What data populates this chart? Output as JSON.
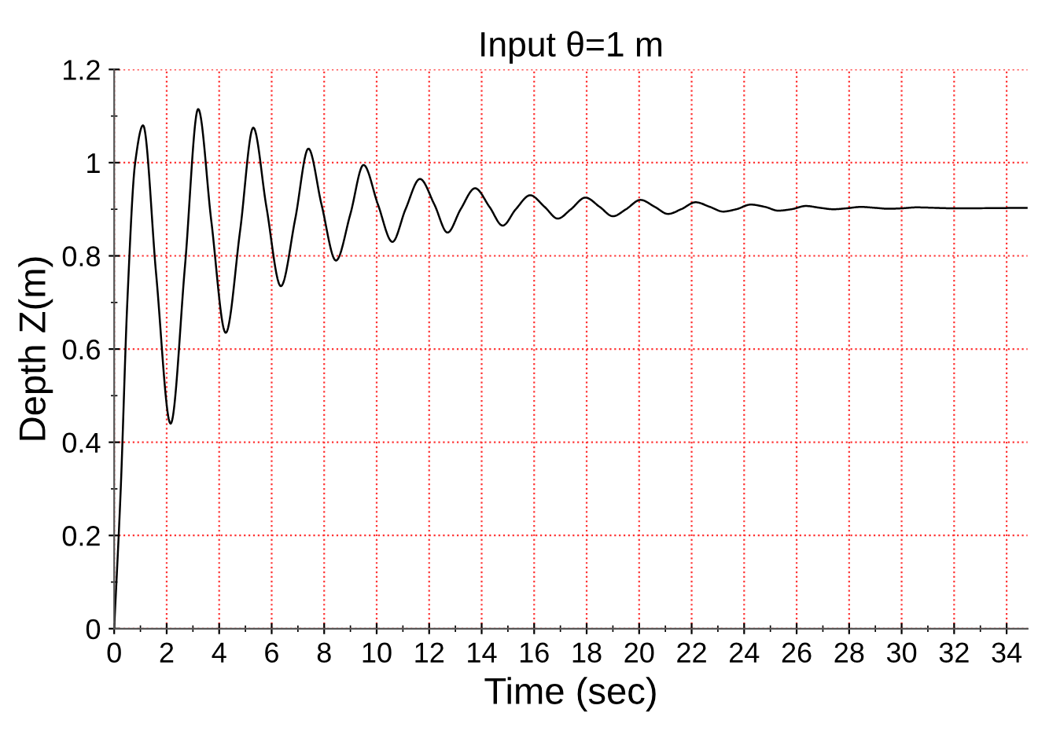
{
  "chart_data": {
    "type": "line",
    "title": "Input θ=1 m",
    "xlabel": "Time (sec)",
    "ylabel": "Depth Z(m)",
    "x": [
      0,
      0.25,
      0.5,
      0.8,
      1.1,
      1.6,
      2.15,
      2.7,
      3.2,
      3.7,
      4.25,
      4.8,
      5.3,
      5.8,
      6.35,
      6.9,
      7.4,
      7.9,
      8.45,
      9.0,
      9.5,
      10.05,
      10.6,
      11.1,
      11.65,
      12.2,
      12.7,
      13.2,
      13.75,
      14.3,
      14.8,
      15.3,
      15.85,
      16.4,
      16.9,
      17.4,
      17.95,
      18.5,
      19.0,
      19.5,
      20.05,
      20.6,
      21.1,
      21.6,
      22.15,
      22.7,
      23.2,
      23.7,
      24.25,
      24.8,
      25.3,
      25.8,
      26.35,
      26.9,
      27.4,
      27.9,
      28.45,
      29.0,
      29.5,
      30.0,
      30.55,
      32.0,
      34.8
    ],
    "series": [
      {
        "color": "#000000",
        "values": [
          0,
          0.3,
          0.7,
          1.0,
          1.08,
          0.76,
          0.44,
          0.78,
          1.115,
          0.875,
          0.635,
          0.855,
          1.075,
          0.905,
          0.735,
          0.88,
          1.03,
          0.91,
          0.79,
          0.89,
          0.995,
          0.91,
          0.83,
          0.9,
          0.965,
          0.91,
          0.85,
          0.9,
          0.945,
          0.905,
          0.865,
          0.9,
          0.93,
          0.905,
          0.88,
          0.9,
          0.925,
          0.905,
          0.885,
          0.9,
          0.92,
          0.905,
          0.89,
          0.9,
          0.915,
          0.905,
          0.895,
          0.9,
          0.91,
          0.905,
          0.897,
          0.9,
          0.907,
          0.903,
          0.9,
          0.902,
          0.905,
          0.903,
          0.901,
          0.902,
          0.904,
          0.902,
          0.903
        ]
      }
    ],
    "xlim": [
      0,
      34.8
    ],
    "ylim": [
      0,
      1.2
    ],
    "xticks": [
      0,
      {
        "value": 1,
        "label": null
      },
      2,
      {
        "value": 3,
        "label": null
      },
      4,
      {
        "value": 5,
        "label": null
      },
      6,
      {
        "value": 7,
        "label": null
      },
      8,
      {
        "value": 9,
        "label": null
      },
      10,
      {
        "value": 11,
        "label": null
      },
      12,
      {
        "value": 13,
        "label": null
      },
      14,
      {
        "value": 15,
        "label": null
      },
      16,
      {
        "value": 17,
        "label": null
      },
      18,
      {
        "value": 19,
        "label": null
      },
      20,
      {
        "value": 21,
        "label": null
      },
      22,
      {
        "value": 23,
        "label": null
      },
      24,
      {
        "value": 25,
        "label": null
      },
      26,
      {
        "value": 27,
        "label": null
      },
      28,
      {
        "value": 29,
        "label": null
      },
      30,
      {
        "value": 31,
        "label": null
      },
      32,
      {
        "value": 33,
        "label": null
      },
      34
    ],
    "yticks": [
      0,
      {
        "value": 0.1,
        "label": null
      },
      0.2,
      {
        "value": 0.3,
        "label": null
      },
      0.4,
      {
        "value": 0.5,
        "label": null
      },
      0.6,
      {
        "value": 0.7,
        "label": null
      },
      0.8,
      {
        "value": 0.9,
        "label": null
      },
      1,
      {
        "value": 1.1,
        "label": null
      },
      1.2
    ],
    "grid": true,
    "legend": false,
    "marker": "none",
    "line_style": "solid"
  }
}
